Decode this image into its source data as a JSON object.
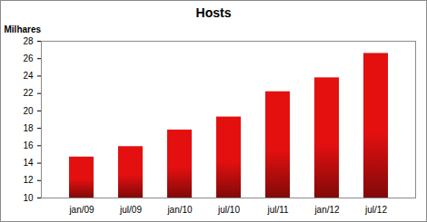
{
  "chart_data": {
    "type": "bar",
    "title": "Hosts",
    "y_label": "Milhares",
    "categories": [
      "jan/09",
      "jul/09",
      "jan/10",
      "jul/10",
      "jul/11",
      "jan/12",
      "jul/12"
    ],
    "values": [
      14.7,
      15.9,
      17.8,
      19.3,
      22.2,
      23.8,
      26.6
    ],
    "color": "#e41010",
    "ylim": [
      10,
      28
    ],
    "yticks": [
      10,
      12,
      14,
      16,
      18,
      20,
      22,
      24,
      26,
      28
    ],
    "grid": false
  }
}
